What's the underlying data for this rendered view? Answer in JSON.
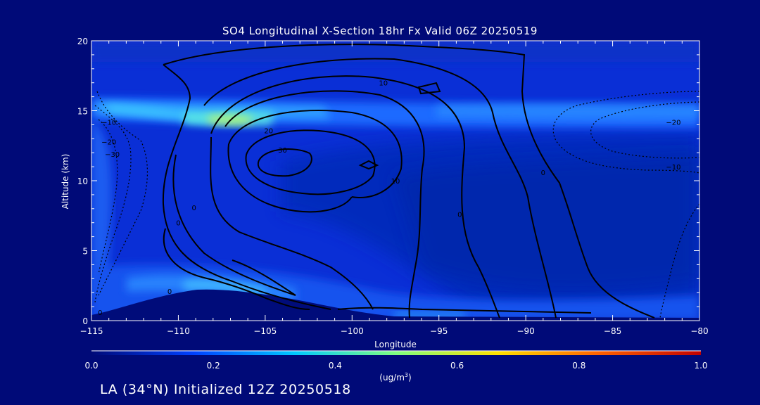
{
  "chart_data": {
    "type": "heatmap",
    "title": "SO4 Longitudinal X-Section 18hr  Fx Valid 06Z 20250519",
    "xlabel": "Longitude",
    "ylabel": "Altitude (km)",
    "xlim": [
      -115,
      -80
    ],
    "ylim": [
      0,
      20
    ],
    "x_ticks": [
      "-115",
      "-110",
      "-105",
      "-100",
      "-95",
      "-90",
      "-85",
      "-80"
    ],
    "y_ticks": [
      "0",
      "5",
      "10",
      "15",
      "20"
    ],
    "colorbar": {
      "label": "(ug/m³)",
      "range": [
        0.0,
        1.0
      ],
      "ticks": [
        "0.0",
        "0.2",
        "0.4",
        "0.6",
        "0.8",
        "1.0"
      ],
      "colors": [
        "#000a78",
        "#0040ff",
        "#00c8ff",
        "#80ff80",
        "#ffe000",
        "#ff6000",
        "#c00000"
      ]
    },
    "contour_labels": [
      {
        "text": "10",
        "lon": -98.2,
        "alt": 16.8
      },
      {
        "text": "20",
        "lon": -104.8,
        "alt": 13.4
      },
      {
        "text": "30",
        "lon": -104.0,
        "alt": 12.0
      },
      {
        "text": "10",
        "lon": -97.5,
        "alt": 9.8
      },
      {
        "text": "0",
        "lon": -109.1,
        "alt": 7.9
      },
      {
        "text": "0",
        "lon": -110.0,
        "alt": 6.8
      },
      {
        "text": "0",
        "lon": -93.8,
        "alt": 7.4
      },
      {
        "text": "0",
        "lon": -89.0,
        "alt": 10.4
      },
      {
        "text": "0",
        "lon": -110.5,
        "alt": 1.9
      },
      {
        "text": "0",
        "lon": -114.5,
        "alt": 0.4
      },
      {
        "text": "-10",
        "lon": -114.0,
        "alt": 14.0
      },
      {
        "text": "-20",
        "lon": -114.0,
        "alt": 12.6
      },
      {
        "text": "-30",
        "lon": -113.8,
        "alt": 11.7
      },
      {
        "text": "-20",
        "lon": -81.5,
        "alt": 14.0
      },
      {
        "text": "-10",
        "lon": -81.5,
        "alt": 10.8
      }
    ]
  },
  "footer": {
    "location_text": "LA (34°N) Initialized 12Z 20250518"
  }
}
